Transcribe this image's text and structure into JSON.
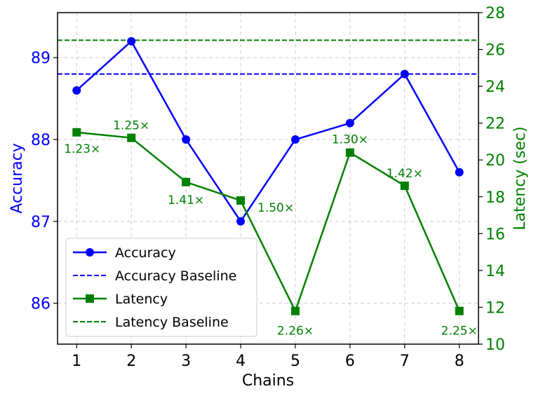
{
  "chart_data": {
    "type": "line",
    "xlabel": "Chains",
    "ylabel_left": "Accuracy",
    "ylabel_right": "Latency (sec)",
    "x": [
      1,
      2,
      3,
      4,
      5,
      6,
      7,
      8
    ],
    "xlim": [
      0.65,
      8.35
    ],
    "ylim_left": [
      85.5,
      89.55
    ],
    "ylim_right": [
      10,
      28
    ],
    "yticks_left": [
      86,
      87,
      88,
      89
    ],
    "yticks_right": [
      10,
      12,
      14,
      16,
      18,
      20,
      22,
      24,
      26,
      28
    ],
    "grid": true,
    "legend_position": "lower-left",
    "colors": {
      "accuracy": "#0000ff",
      "latency": "#008000"
    },
    "series": [
      {
        "name": "Accuracy",
        "axis": "left",
        "marker": "circle",
        "style": "solid",
        "color": "#0000ff",
        "values": [
          88.6,
          89.2,
          88.0,
          87.0,
          88.0,
          88.2,
          88.8,
          87.6
        ]
      },
      {
        "name": "Accuracy Baseline",
        "axis": "left",
        "style": "dashed",
        "color": "#0000ff",
        "value": 88.8
      },
      {
        "name": "Latency",
        "axis": "right",
        "marker": "square",
        "style": "solid",
        "color": "#008000",
        "values": [
          21.5,
          21.2,
          18.8,
          17.8,
          11.8,
          20.4,
          18.6,
          11.8
        ]
      },
      {
        "name": "Latency Baseline",
        "axis": "right",
        "style": "dashed",
        "color": "#008000",
        "value": 26.5
      }
    ],
    "annotations": [
      "1.23×",
      "1.25×",
      "1.41×",
      "1.50×",
      "2.26×",
      "1.30×",
      "1.42×",
      "2.25×"
    ]
  }
}
